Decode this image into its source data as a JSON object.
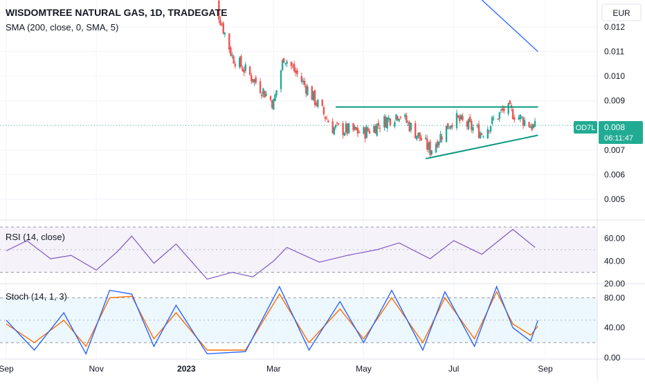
{
  "main": {
    "title": "WISDOMTREE NATURAL GAS, 1D, TRADEGATE",
    "sma_label": "SMA (200, close, 0, SMA, 5)",
    "currency": "EUR",
    "symbol_tag": "OD7L",
    "last_price": "0.008",
    "countdown": "06:11:47"
  },
  "colors": {
    "up": "#26a69a",
    "down": "#ef5350",
    "sma": "#2962ff",
    "trendline": "#089981",
    "rsi": "#7e57c2",
    "stoch_k": "#2962ff",
    "stoch_d": "#ff6d00",
    "price_tag": "#22ab94"
  },
  "chart_data": [
    {
      "type": "candlestick",
      "title": "WISDOMTREE NATURAL GAS, 1D, TRADEGATE",
      "currency": "EUR",
      "x_tick_labels": [
        "Sep",
        "Nov",
        "2023",
        "Mar",
        "May",
        "Jul",
        "Sep"
      ],
      "y_tick_labels": [
        "0.012",
        "0.011",
        "0.010",
        "0.009",
        "0.007",
        "0.006",
        "0.005"
      ],
      "ylim": [
        0.0043,
        0.013
      ],
      "approx_close_path": [
        {
          "date": "2023-01-15",
          "close": 0.014
        },
        {
          "date": "2023-02-01",
          "close": 0.0108
        },
        {
          "date": "2023-02-15",
          "close": 0.0099
        },
        {
          "date": "2023-03-01",
          "close": 0.0089
        },
        {
          "date": "2023-03-08",
          "close": 0.0108
        },
        {
          "date": "2023-03-25",
          "close": 0.0094
        },
        {
          "date": "2023-04-10",
          "close": 0.0079
        },
        {
          "date": "2023-05-01",
          "close": 0.0077
        },
        {
          "date": "2023-05-25",
          "close": 0.0085
        },
        {
          "date": "2023-06-15",
          "close": 0.007
        },
        {
          "date": "2023-07-01",
          "close": 0.0083
        },
        {
          "date": "2023-07-20",
          "close": 0.0077
        },
        {
          "date": "2023-08-05",
          "close": 0.0087
        },
        {
          "date": "2023-08-25",
          "close": 0.0079
        }
      ],
      "sma_200": {
        "label": "SMA (200, close, 0, SMA, 5)",
        "points": [
          {
            "date": "2023-07-20",
            "value": 0.0131
          },
          {
            "date": "2023-08-27",
            "value": 0.011
          }
        ]
      },
      "trendlines": [
        {
          "name": "resistance",
          "from": {
            "date": "2023-04-12",
            "value": 0.00875
          },
          "to": {
            "date": "2023-08-27",
            "value": 0.00875
          }
        },
        {
          "name": "support",
          "from": {
            "date": "2023-06-12",
            "value": 0.00665
          },
          "to": {
            "date": "2023-08-27",
            "value": 0.0076
          }
        }
      ],
      "last": {
        "symbol": "OD7L",
        "price": 0.008,
        "countdown": "06:11:47"
      }
    },
    {
      "type": "line",
      "title": "RSI (14, close)",
      "y_tick_labels": [
        "60.00",
        "40.00",
        "20.00"
      ],
      "bands": [
        30,
        70
      ],
      "ylim": [
        20,
        75
      ],
      "series": [
        {
          "name": "RSI (14, close)",
          "points": [
            {
              "date": "2022-09-01",
              "value": 49
            },
            {
              "date": "2022-09-15",
              "value": 58
            },
            {
              "date": "2022-10-01",
              "value": 42
            },
            {
              "date": "2022-10-15",
              "value": 45
            },
            {
              "date": "2022-11-01",
              "value": 32
            },
            {
              "date": "2022-11-15",
              "value": 48
            },
            {
              "date": "2022-11-25",
              "value": 62
            },
            {
              "date": "2022-12-10",
              "value": 38
            },
            {
              "date": "2022-12-25",
              "value": 55
            },
            {
              "date": "2023-01-15",
              "value": 24
            },
            {
              "date": "2023-02-01",
              "value": 30
            },
            {
              "date": "2023-02-15",
              "value": 26
            },
            {
              "date": "2023-03-01",
              "value": 40
            },
            {
              "date": "2023-03-10",
              "value": 52
            },
            {
              "date": "2023-04-01",
              "value": 39
            },
            {
              "date": "2023-04-20",
              "value": 45
            },
            {
              "date": "2023-05-10",
              "value": 50
            },
            {
              "date": "2023-05-25",
              "value": 56
            },
            {
              "date": "2023-06-15",
              "value": 42
            },
            {
              "date": "2023-07-01",
              "value": 58
            },
            {
              "date": "2023-07-20",
              "value": 46
            },
            {
              "date": "2023-08-10",
              "value": 68
            },
            {
              "date": "2023-08-25",
              "value": 52
            }
          ]
        }
      ]
    },
    {
      "type": "line",
      "title": "Stoch (14, 1, 3)",
      "y_tick_labels": [
        "80.00",
        "40.00",
        "0.00"
      ],
      "bands": [
        20,
        80
      ],
      "ylim": [
        -2,
        97
      ],
      "series": [
        {
          "name": "%K",
          "points": [
            {
              "date": "2022-09-01",
              "value": 50
            },
            {
              "date": "2022-09-20",
              "value": 10
            },
            {
              "date": "2022-10-10",
              "value": 60
            },
            {
              "date": "2022-10-25",
              "value": 5
            },
            {
              "date": "2022-11-10",
              "value": 90
            },
            {
              "date": "2022-11-25",
              "value": 85
            },
            {
              "date": "2022-12-10",
              "value": 15
            },
            {
              "date": "2022-12-25",
              "value": 70
            },
            {
              "date": "2023-01-15",
              "value": 5
            },
            {
              "date": "2023-02-10",
              "value": 8
            },
            {
              "date": "2023-03-05",
              "value": 95
            },
            {
              "date": "2023-03-25",
              "value": 10
            },
            {
              "date": "2023-04-15",
              "value": 75
            },
            {
              "date": "2023-05-01",
              "value": 20
            },
            {
              "date": "2023-05-20",
              "value": 90
            },
            {
              "date": "2023-06-10",
              "value": 10
            },
            {
              "date": "2023-06-25",
              "value": 88
            },
            {
              "date": "2023-07-15",
              "value": 15
            },
            {
              "date": "2023-07-30",
              "value": 95
            },
            {
              "date": "2023-08-10",
              "value": 40
            },
            {
              "date": "2023-08-22",
              "value": 22
            },
            {
              "date": "2023-08-27",
              "value": 50
            }
          ]
        },
        {
          "name": "%D",
          "points": [
            {
              "date": "2022-09-01",
              "value": 45
            },
            {
              "date": "2022-09-20",
              "value": 20
            },
            {
              "date": "2022-10-10",
              "value": 50
            },
            {
              "date": "2022-10-25",
              "value": 15
            },
            {
              "date": "2022-11-10",
              "value": 80
            },
            {
              "date": "2022-11-25",
              "value": 82
            },
            {
              "date": "2022-12-10",
              "value": 25
            },
            {
              "date": "2022-12-25",
              "value": 60
            },
            {
              "date": "2023-01-15",
              "value": 10
            },
            {
              "date": "2023-02-10",
              "value": 10
            },
            {
              "date": "2023-03-05",
              "value": 85
            },
            {
              "date": "2023-03-25",
              "value": 20
            },
            {
              "date": "2023-04-15",
              "value": 65
            },
            {
              "date": "2023-05-01",
              "value": 25
            },
            {
              "date": "2023-05-20",
              "value": 80
            },
            {
              "date": "2023-06-10",
              "value": 20
            },
            {
              "date": "2023-06-25",
              "value": 80
            },
            {
              "date": "2023-07-15",
              "value": 25
            },
            {
              "date": "2023-07-30",
              "value": 88
            },
            {
              "date": "2023-08-10",
              "value": 45
            },
            {
              "date": "2023-08-22",
              "value": 30
            },
            {
              "date": "2023-08-27",
              "value": 42
            }
          ]
        }
      ]
    }
  ]
}
